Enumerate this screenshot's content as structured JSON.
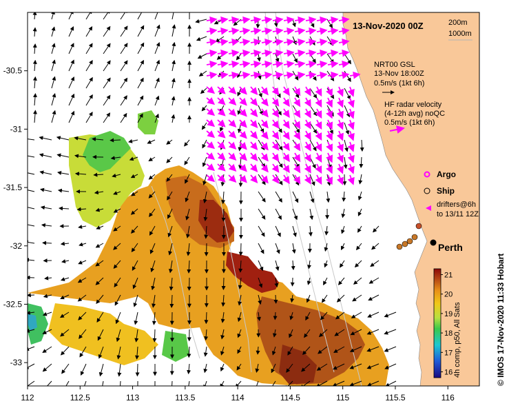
{
  "map": {
    "title": "13-Nov-2020 00Z",
    "credit": "© IMOS 17-Nov-2020 11:33 Hobart",
    "x_ticks": [
      "112",
      "112.5",
      "113",
      "113.5",
      "114",
      "114.5",
      "115",
      "115.5",
      "116"
    ],
    "y_ticks": [
      "-30.5",
      "-31",
      "-31.5",
      "-32",
      "-32.5",
      "-33"
    ],
    "lon_range": [
      112,
      116.3
    ],
    "lat_range": [
      -33.2,
      -30.0
    ],
    "bathy_legend": {
      "line1": "200m",
      "line2": "1000m"
    },
    "gsl_legend": {
      "line1": "NRT00 GSL",
      "line2": "13-Nov 18:00Z",
      "line3": "0.5m/s (1kt 6h)"
    },
    "hf_legend": {
      "line1": "HF radar velocity",
      "line2": "(4-12h avg) noQC",
      "line3": "0.5m/s (1kt 6h)"
    },
    "markers": {
      "argo": "Argo",
      "ship": "Ship",
      "drifters_line1": "drifters@6h",
      "drifters_line2": "to 13/11 12Z"
    },
    "city": "Perth",
    "colorbar": {
      "ticks": [
        "21",
        "20",
        "19",
        "18",
        "17",
        "16"
      ],
      "label": "4h comp, p50, All Sats",
      "range": [
        15.7,
        21.3
      ]
    },
    "colors": {
      "land": "#f9c899",
      "hf_arrows": "#ff00ff",
      "gsl_arrows": "#000000",
      "drifters": "#c87828"
    }
  }
}
